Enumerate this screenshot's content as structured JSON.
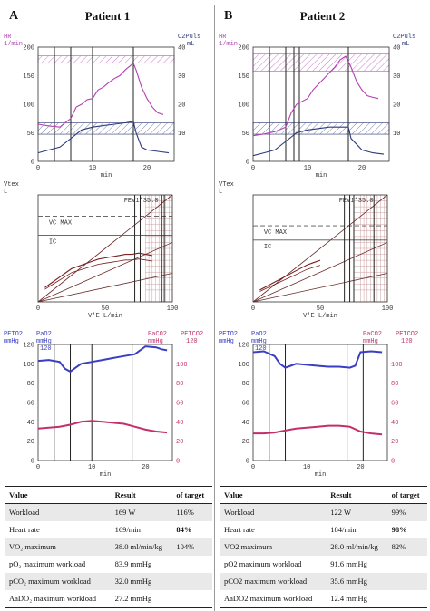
{
  "panels": [
    {
      "letter": "A",
      "title": "Patient 1",
      "hr_chart": {
        "left_label_1": "HR",
        "left_label_2": "1/min",
        "right_label_1": "O2Puls",
        "right_label_2": "mL",
        "left_ticks": [
          "200",
          "150",
          "100",
          "50",
          "0"
        ],
        "right_ticks": [
          "40",
          "30",
          "20",
          "10"
        ],
        "x_ticks": [
          "0",
          "10",
          "20"
        ],
        "x_label": "min",
        "colors": {
          "hr": "#b33fb3",
          "o2pulse": "#2c3a7a",
          "band": "#c77fc7"
        }
      },
      "flow_chart": {
        "y_label_1": "Vtex",
        "y_label_2": "L",
        "fev1": "FEV1*35.0",
        "vc_max": "VC MAX",
        "ic": "IC",
        "x_ticks": [
          "0",
          "50",
          "100"
        ],
        "x_label": "V'E  L/min",
        "colors": {
          "loop": "#7a1f1f",
          "grid": "#c9a0a0"
        }
      },
      "gas_chart": {
        "left_label_1": "PETO2",
        "left_label_2": "mmHg",
        "mid_label_1": "PaO2",
        "mid_label_2": "mmHg",
        "mid_label_3": "120",
        "right_label_1": "PaCO2",
        "right_label_2": "mmHg",
        "far_label_1": "PETCO2",
        "far_label_2": "120",
        "left_ticks": [
          "120",
          "100",
          "80",
          "60",
          "40",
          "20",
          "0"
        ],
        "right_ticks": [
          "100",
          "80",
          "60",
          "40",
          "20",
          "0"
        ],
        "x_ticks": [
          "0",
          "10",
          "20"
        ],
        "x_label": "min",
        "colors": {
          "o2": "#3a3ec2",
          "co2": "#c2306a"
        }
      },
      "table": {
        "headers": [
          "Value",
          "Result",
          "of target"
        ],
        "rows": [
          {
            "label": "Workload",
            "result": "169 W",
            "target": "116%"
          },
          {
            "label": "Heart rate",
            "result": "169/min",
            "target": "84%"
          },
          {
            "label": "VO₂ maximum",
            "result": "38.0 ml/min/kg",
            "target": "104%"
          },
          {
            "label": "pO₂ maximum workload",
            "result": "83.9 mmHg",
            "target": ""
          },
          {
            "label": "pCO₂ maximum workload",
            "result": "32.0 mmHg",
            "target": ""
          },
          {
            "label": "AaDO₂ maximum workload",
            "result": "27.2 mmHg",
            "target": ""
          }
        ]
      }
    },
    {
      "letter": "B",
      "title": "Patient 2",
      "hr_chart": {
        "left_label_1": "HR",
        "left_label_2": "1/min",
        "right_label_1": "O2Puls",
        "right_label_2": "mL",
        "left_ticks": [
          "200",
          "150",
          "100",
          "50",
          "0"
        ],
        "right_ticks": [
          "40",
          "30",
          "20",
          "10"
        ],
        "x_ticks": [
          "0",
          "10",
          "20"
        ],
        "x_label": "min",
        "colors": {
          "hr": "#b33fb3",
          "o2pulse": "#2c3a7a",
          "band": "#c77fc7"
        }
      },
      "flow_chart": {
        "y_label_1": "VTex",
        "y_label_2": "L",
        "fev1": "FEV1*35.0",
        "vc_max": "VC MAX",
        "ic": "IC",
        "x_ticks": [
          "0",
          "50",
          "100"
        ],
        "x_label": "V'E  L/min",
        "colors": {
          "loop": "#7a1f1f",
          "grid": "#c9a0a0"
        }
      },
      "gas_chart": {
        "left_label_1": "PETO2",
        "left_label_2": "mmHg",
        "mid_label_1": "PaO2",
        "mid_label_2": "mmHg",
        "mid_label_3": "120",
        "right_label_1": "PaCO2",
        "right_label_2": "mmHg",
        "far_label_1": "PETCO2",
        "far_label_2": "120",
        "left_ticks": [
          "120",
          "100",
          "80",
          "60",
          "40",
          "20",
          "0"
        ],
        "right_ticks": [
          "100",
          "80",
          "60",
          "40",
          "20",
          "0"
        ],
        "x_ticks": [
          "0",
          "10",
          "20"
        ],
        "x_label": "min",
        "colors": {
          "o2": "#3a3ec2",
          "co2": "#c2306a"
        }
      },
      "table": {
        "headers": [
          "Value",
          "Result",
          "of target"
        ],
        "rows": [
          {
            "label": "Workload",
            "result": "122 W",
            "target": "99%"
          },
          {
            "label": "Heart rate",
            "result": "184/min",
            "target": "98%"
          },
          {
            "label": "VO2 maximum",
            "result": "28.0 ml/min/kg",
            "target": "82%"
          },
          {
            "label": "pO2 maximum workload",
            "result": "91.6 mmHg",
            "target": ""
          },
          {
            "label": "pCO2 maximum workload",
            "result": "35.6 mmHg",
            "target": ""
          },
          {
            "label": "AaDO2 maximum workload",
            "result": "12.4 mmHg",
            "target": ""
          }
        ]
      }
    }
  ],
  "chart_data": [
    {
      "type": "line",
      "panel": "A",
      "x_unit": "min",
      "xlim": [
        0,
        25
      ],
      "series": [
        {
          "name": "HR",
          "y_axis": "left",
          "ylim": [
            0,
            200
          ],
          "x": [
            0,
            2,
            4,
            5,
            6,
            7,
            8,
            9,
            10,
            11,
            12,
            13,
            14,
            15,
            16,
            17,
            17.5,
            18,
            19,
            20,
            21,
            22,
            23
          ],
          "y": [
            65,
            62,
            60,
            68,
            75,
            95,
            100,
            108,
            110,
            125,
            130,
            138,
            145,
            150,
            160,
            168,
            172,
            160,
            130,
            110,
            95,
            85,
            82
          ]
        },
        {
          "name": "O2Puls",
          "y_axis": "right",
          "ylim": [
            0,
            40
          ],
          "x": [
            0,
            2,
            4,
            6,
            8,
            10,
            12,
            14,
            16,
            17.5,
            18,
            19,
            20,
            22,
            24
          ],
          "y": [
            3,
            4,
            5,
            8,
            11,
            12,
            12.5,
            13,
            13.5,
            14,
            10,
            5,
            4,
            3.5,
            3
          ]
        }
      ]
    },
    {
      "type": "line",
      "panel": "B",
      "x_unit": "min",
      "xlim": [
        0,
        25
      ],
      "series": [
        {
          "name": "HR",
          "y_axis": "left",
          "ylim": [
            0,
            200
          ],
          "x": [
            0,
            2,
            4,
            6,
            7,
            8,
            9,
            10,
            11,
            12,
            13,
            14,
            15,
            16,
            17,
            18,
            19,
            20,
            21,
            22,
            23
          ],
          "y": [
            45,
            48,
            52,
            60,
            85,
            100,
            105,
            110,
            125,
            135,
            145,
            155,
            165,
            178,
            184,
            165,
            140,
            125,
            115,
            112,
            110
          ]
        },
        {
          "name": "O2Puls",
          "y_axis": "right",
          "ylim": [
            0,
            40
          ],
          "x": [
            0,
            2,
            4,
            6,
            8,
            10,
            12,
            14,
            16,
            17.5,
            18,
            20,
            22,
            24
          ],
          "y": [
            2,
            3,
            4,
            7,
            10,
            11,
            11.5,
            12,
            12,
            12,
            8,
            4,
            3,
            2.5
          ]
        }
      ]
    },
    {
      "type": "line",
      "panel": "A",
      "x_unit": "L/min",
      "xlim": [
        0,
        100
      ],
      "series": [
        {
          "name": "Vtex",
          "ylim": [
            0,
            4.5
          ],
          "x": [
            5,
            10,
            15,
            20,
            25,
            30,
            35,
            40,
            45,
            50,
            55,
            60,
            65,
            70,
            75,
            80,
            85
          ],
          "y": [
            0.6,
            0.8,
            1.0,
            1.2,
            1.4,
            1.5,
            1.6,
            1.7,
            1.8,
            1.85,
            1.9,
            1.95,
            2.0,
            2.0,
            2.05,
            2.0,
            1.95
          ]
        }
      ]
    },
    {
      "type": "line",
      "panel": "B",
      "x_unit": "L/min",
      "xlim": [
        0,
        100
      ],
      "series": [
        {
          "name": "VTex",
          "ylim": [
            0,
            4.5
          ],
          "x": [
            5,
            10,
            15,
            20,
            25,
            30,
            35,
            40,
            45,
            50
          ],
          "y": [
            0.5,
            0.65,
            0.8,
            0.95,
            1.1,
            1.25,
            1.4,
            1.55,
            1.65,
            1.75
          ]
        }
      ]
    },
    {
      "type": "line",
      "panel": "A",
      "x_unit": "min",
      "xlim": [
        0,
        25
      ],
      "series": [
        {
          "name": "PETO2",
          "y_axis": "left",
          "ylim": [
            0,
            120
          ],
          "x": [
            0,
            2,
            4,
            5,
            6,
            7,
            8,
            10,
            12,
            14,
            16,
            18,
            20,
            22,
            23,
            24
          ],
          "y": [
            103,
            104,
            102,
            95,
            92,
            96,
            100,
            102,
            104,
            106,
            108,
            110,
            118,
            117,
            115,
            114
          ]
        },
        {
          "name": "PETCO2",
          "y_axis": "right",
          "ylim": [
            0,
            120
          ],
          "x": [
            0,
            2,
            4,
            6,
            8,
            10,
            12,
            14,
            16,
            18,
            20,
            22,
            24
          ],
          "y": [
            33,
            34,
            35,
            37,
            40,
            41,
            40,
            39,
            38,
            35,
            32,
            30,
            29
          ]
        }
      ]
    },
    {
      "type": "line",
      "panel": "B",
      "x_unit": "min",
      "xlim": [
        0,
        25
      ],
      "series": [
        {
          "name": "PETO2",
          "y_axis": "left",
          "ylim": [
            0,
            120
          ],
          "x": [
            0,
            2,
            4,
            5,
            6,
            7,
            8,
            10,
            12,
            14,
            16,
            18,
            19,
            20,
            22,
            24
          ],
          "y": [
            112,
            113,
            108,
            100,
            96,
            98,
            100,
            99,
            98,
            97,
            97,
            96,
            98,
            112,
            113,
            112
          ]
        },
        {
          "name": "PETCO2",
          "y_axis": "right",
          "ylim": [
            0,
            120
          ],
          "x": [
            0,
            2,
            4,
            6,
            8,
            10,
            12,
            14,
            16,
            18,
            20,
            22,
            24
          ],
          "y": [
            28,
            28,
            29,
            31,
            33,
            34,
            35,
            36,
            36,
            35,
            30,
            28,
            27
          ]
        }
      ]
    }
  ]
}
